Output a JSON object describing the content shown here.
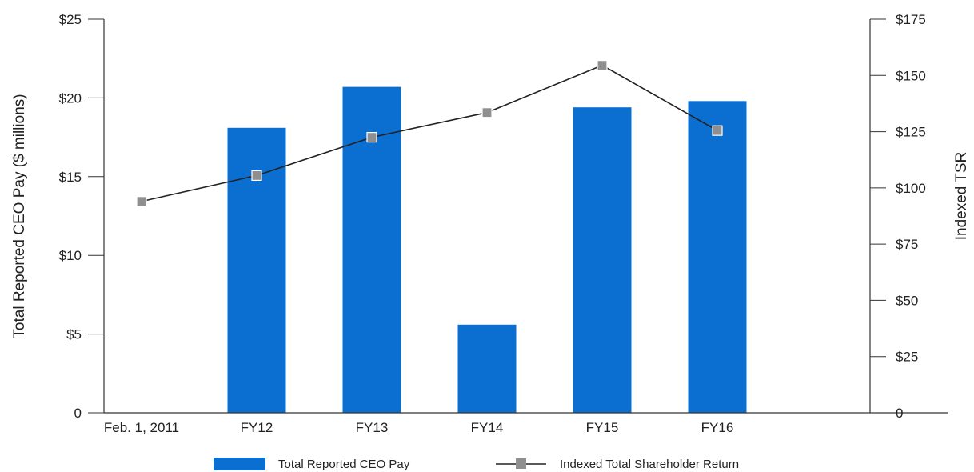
{
  "chart_data": {
    "type": "bar",
    "categories": [
      "Feb. 1, 2011",
      "FY12",
      "FY13",
      "FY14",
      "FY15",
      "FY16"
    ],
    "series": [
      {
        "name": "Total Reported CEO Pay",
        "type": "bar",
        "axis": "left",
        "color": "#0a6fd0",
        "values": [
          null,
          18.1,
          20.7,
          5.6,
          19.4,
          19.8
        ]
      },
      {
        "name": "Indexed Total Shareholder Return",
        "type": "line",
        "axis": "right",
        "line_color": "#222222",
        "marker_color": "#8f8f8f",
        "marker": "square",
        "values": [
          94,
          105.5,
          122.5,
          133.5,
          154.5,
          125.5
        ]
      }
    ],
    "ylabel": "Total Reported CEO Pay ($ millions)",
    "ylabel_right": "Indexed TSR",
    "ylim": [
      0,
      25
    ],
    "ylim_right": [
      0,
      175
    ],
    "yticks": [
      {
        "value": 0,
        "label": "0"
      },
      {
        "value": 5,
        "label": "$5"
      },
      {
        "value": 10,
        "label": "$10"
      },
      {
        "value": 15,
        "label": "$15"
      },
      {
        "value": 20,
        "label": "$20"
      },
      {
        "value": 25,
        "label": "$25"
      }
    ],
    "yticks_right": [
      {
        "value": 0,
        "label": "0"
      },
      {
        "value": 25,
        "label": "$25"
      },
      {
        "value": 50,
        "label": "$50"
      },
      {
        "value": 75,
        "label": "$75"
      },
      {
        "value": 100,
        "label": "$100"
      },
      {
        "value": 125,
        "label": "$125"
      },
      {
        "value": 150,
        "label": "$150"
      },
      {
        "value": 175,
        "label": "$175"
      }
    ],
    "grid": false,
    "legend_position": "bottom-center"
  }
}
